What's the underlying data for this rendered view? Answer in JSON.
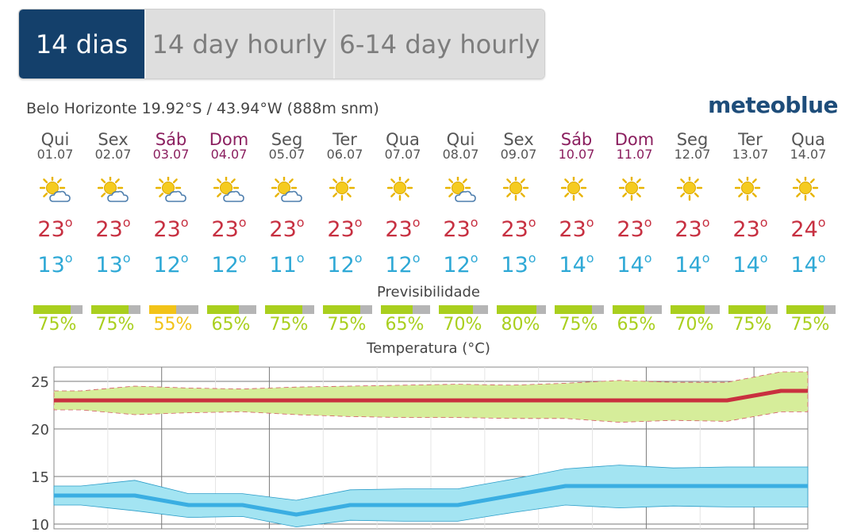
{
  "tabs": [
    {
      "label": "14 dias",
      "active": true
    },
    {
      "label": "14 day hourly",
      "active": false
    },
    {
      "label": "6-14 day hourly",
      "active": false
    }
  ],
  "location": {
    "text": "Belo Horizonte  19.92°S / 43.94°W (888m snm)"
  },
  "brand": "meteoblue",
  "colors": {
    "tab_active": "#14406b",
    "max_temp": "#c73041",
    "min_temp": "#2fa9d6",
    "weekend": "#8b1f5f",
    "pred_green": "#a9cf1e",
    "pred_yellow": "#f2c318"
  },
  "days": [
    {
      "name": "Qui",
      "date": "01.07",
      "weekend": false,
      "icon": "sun-cloud-icon",
      "max": "23",
      "min": "13",
      "pred": "75%",
      "pred_value": 75
    },
    {
      "name": "Sex",
      "date": "02.07",
      "weekend": false,
      "icon": "sun-cloud-icon",
      "max": "23",
      "min": "13",
      "pred": "75%",
      "pred_value": 75
    },
    {
      "name": "Sáb",
      "date": "03.07",
      "weekend": true,
      "icon": "sun-cloud-icon",
      "max": "23",
      "min": "12",
      "pred": "55%",
      "pred_value": 55
    },
    {
      "name": "Dom",
      "date": "04.07",
      "weekend": true,
      "icon": "sun-cloud-icon",
      "max": "23",
      "min": "12",
      "pred": "65%",
      "pred_value": 65
    },
    {
      "name": "Seg",
      "date": "05.07",
      "weekend": false,
      "icon": "sun-cloud-icon",
      "max": "23",
      "min": "11",
      "pred": "75%",
      "pred_value": 75
    },
    {
      "name": "Ter",
      "date": "06.07",
      "weekend": false,
      "icon": "sun-icon",
      "max": "23",
      "min": "12",
      "pred": "75%",
      "pred_value": 75
    },
    {
      "name": "Qua",
      "date": "07.07",
      "weekend": false,
      "icon": "sun-icon",
      "max": "23",
      "min": "12",
      "pred": "65%",
      "pred_value": 65
    },
    {
      "name": "Qui",
      "date": "08.07",
      "weekend": false,
      "icon": "sun-cloud-icon",
      "max": "23",
      "min": "12",
      "pred": "70%",
      "pred_value": 70
    },
    {
      "name": "Sex",
      "date": "09.07",
      "weekend": false,
      "icon": "sun-icon",
      "max": "23",
      "min": "13",
      "pred": "80%",
      "pred_value": 80
    },
    {
      "name": "Sáb",
      "date": "10.07",
      "weekend": true,
      "icon": "sun-icon",
      "max": "23",
      "min": "14",
      "pred": "75%",
      "pred_value": 75
    },
    {
      "name": "Dom",
      "date": "11.07",
      "weekend": true,
      "icon": "sun-icon",
      "max": "23",
      "min": "14",
      "pred": "65%",
      "pred_value": 65
    },
    {
      "name": "Seg",
      "date": "12.07",
      "weekend": false,
      "icon": "sun-icon",
      "max": "23",
      "min": "14",
      "pred": "70%",
      "pred_value": 70
    },
    {
      "name": "Ter",
      "date": "13.07",
      "weekend": false,
      "icon": "sun-icon",
      "max": "23",
      "min": "14",
      "pred": "75%",
      "pred_value": 75
    },
    {
      "name": "Qua",
      "date": "14.07",
      "weekend": false,
      "icon": "sun-icon",
      "max": "24",
      "min": "14",
      "pred": "75%",
      "pred_value": 75
    }
  ],
  "predictability": {
    "title": "Previsibilidade"
  },
  "chart_data": {
    "type": "line",
    "title": "Temperatura (°C)",
    "categories": [
      "01.07",
      "02.07",
      "03.07",
      "04.07",
      "05.07",
      "06.07",
      "07.07",
      "08.07",
      "09.07",
      "10.07",
      "11.07",
      "12.07",
      "13.07",
      "14.07"
    ],
    "y_ticks": [
      "25",
      "20",
      "15",
      "10"
    ],
    "ylim": [
      9.5,
      26.5
    ],
    "grid": true,
    "series": [
      {
        "values": [
          23,
          23,
          23,
          23,
          23,
          23,
          23,
          23,
          23,
          23,
          23,
          23,
          23,
          24
        ],
        "color": "#c9303f",
        "range_upper": [
          24,
          24.5,
          24.3,
          24.2,
          24.4,
          24.5,
          24.6,
          24.7,
          24.6,
          24.8,
          25.1,
          24.9,
          24.9,
          26
        ],
        "range_lower": [
          22,
          21.5,
          21.7,
          21.8,
          21.5,
          21.3,
          21.2,
          21.2,
          21.1,
          21.1,
          20.7,
          20.9,
          20.8,
          21.8
        ],
        "range_color": "#d6ed9a"
      },
      {
        "values": [
          13,
          13,
          12,
          12,
          11,
          12,
          12,
          12,
          13,
          14,
          14,
          14,
          14,
          14
        ],
        "color": "#3aaee2",
        "range_upper": [
          14,
          14.6,
          13.2,
          13.2,
          12.5,
          13.6,
          13.7,
          13.7,
          14.7,
          15.8,
          16.2,
          15.9,
          16.0,
          16.0
        ],
        "range_lower": [
          12,
          11.4,
          10.7,
          10.8,
          9.7,
          10.4,
          10.3,
          10.3,
          11.2,
          12.0,
          11.7,
          11.9,
          11.8,
          11.8
        ],
        "range_color": "#a3e4f2"
      }
    ]
  }
}
